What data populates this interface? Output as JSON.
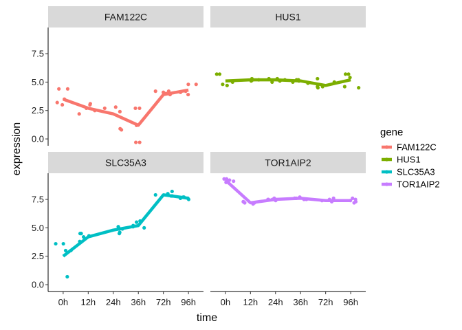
{
  "chart_data": {
    "type": "line",
    "facet_by": "gene",
    "xlabel": "time",
    "ylabel": "expression",
    "x_categories": [
      "0h",
      "12h",
      "24h",
      "36h",
      "72h",
      "96h"
    ],
    "ylim": [
      -0.6,
      9.8
    ],
    "y_ticks": [
      0.0,
      2.5,
      5.0,
      7.5
    ],
    "y_tick_labels": [
      "0.0",
      "2.5",
      "5.0",
      "7.5"
    ],
    "legend": {
      "title": "gene",
      "position": "right"
    },
    "series": [
      {
        "name": "FAM122C",
        "color": "#F8766D",
        "line_values": [
          3.5,
          2.7,
          2.2,
          1.2,
          3.9,
          4.3
        ],
        "points": [
          {
            "x": "0h",
            "values": [
              3.2,
              4.4,
              3.5,
              3.0,
              4.4
            ]
          },
          {
            "x": "12h",
            "values": [
              2.2,
              3.0,
              3.1,
              2.7,
              2.5
            ]
          },
          {
            "x": "24h",
            "values": [
              0.9,
              2.4,
              2.7,
              2.8,
              0.8
            ]
          },
          {
            "x": "36h",
            "values": [
              2.7,
              2.7,
              -0.3,
              1.2,
              -0.3
            ]
          },
          {
            "x": "72h",
            "values": [
              4.2,
              3.9,
              4.0,
              4.2,
              4.1
            ]
          },
          {
            "x": "96h",
            "values": [
              4.8,
              3.9,
              4.2,
              4.8,
              4.1
            ]
          }
        ]
      },
      {
        "name": "HUS1",
        "color": "#7CAE00",
        "line_values": [
          5.1,
          5.2,
          5.2,
          5.1,
          4.7,
          5.2
        ],
        "points": [
          {
            "x": "0h",
            "values": [
              4.7,
              5.7,
              4.8,
              5.0,
              5.7
            ]
          },
          {
            "x": "12h",
            "values": [
              5.2,
              5.3,
              5.1,
              5.2,
              5.2
            ]
          },
          {
            "x": "24h",
            "values": [
              5.0,
              5.3,
              5.2,
              5.3,
              5.1
            ]
          },
          {
            "x": "36h",
            "values": [
              5.0,
              5.2,
              4.9,
              5.1,
              5.2
            ]
          },
          {
            "x": "72h",
            "values": [
              4.6,
              5.3,
              4.5,
              5.0,
              4.6
            ]
          },
          {
            "x": "96h",
            "values": [
              5.7,
              4.5,
              5.4,
              5.7,
              4.6
            ]
          }
        ]
      },
      {
        "name": "SLC35A3",
        "color": "#00BFC4",
        "line_values": [
          2.5,
          4.2,
          4.8,
          5.2,
          7.9,
          7.6
        ],
        "points": [
          {
            "x": "0h",
            "values": [
              3.0,
              3.6,
              3.0,
              0.7,
              3.6
            ]
          },
          {
            "x": "12h",
            "values": [
              4.5,
              4.5,
              3.8,
              4.2,
              4.3
            ]
          },
          {
            "x": "24h",
            "values": [
              4.5,
              5.1,
              4.9,
              5.0,
              4.6
            ]
          },
          {
            "x": "36h",
            "values": [
              5.2,
              5.6,
              5.5,
              5.1,
              5.0
            ]
          },
          {
            "x": "72h",
            "values": [
              8.2,
              7.8,
              8.0,
              7.9,
              7.8
            ]
          },
          {
            "x": "96h",
            "values": [
              7.7,
              7.6,
              7.5,
              7.7,
              7.6
            ]
          }
        ]
      },
      {
        "name": "TOR1AIP2",
        "color": "#C77CFF",
        "line_values": [
          9.2,
          7.2,
          7.5,
          7.6,
          7.4,
          7.4
        ],
        "points": [
          {
            "x": "0h",
            "values": [
              9.3,
              9.1,
              9.2,
              9.0,
              9.3
            ]
          },
          {
            "x": "12h",
            "values": [
              7.1,
              7.3,
              7.2,
              7.3,
              7.2
            ]
          },
          {
            "x": "24h",
            "values": [
              7.5,
              7.4,
              7.6,
              7.5,
              7.5
            ]
          },
          {
            "x": "36h",
            "values": [
              7.6,
              7.5,
              7.7,
              7.6,
              7.5
            ]
          },
          {
            "x": "72h",
            "values": [
              7.5,
              7.3,
              7.4,
              7.6,
              7.4
            ]
          },
          {
            "x": "96h",
            "values": [
              7.6,
              7.2,
              7.4,
              7.5,
              7.3
            ]
          }
        ]
      }
    ]
  }
}
